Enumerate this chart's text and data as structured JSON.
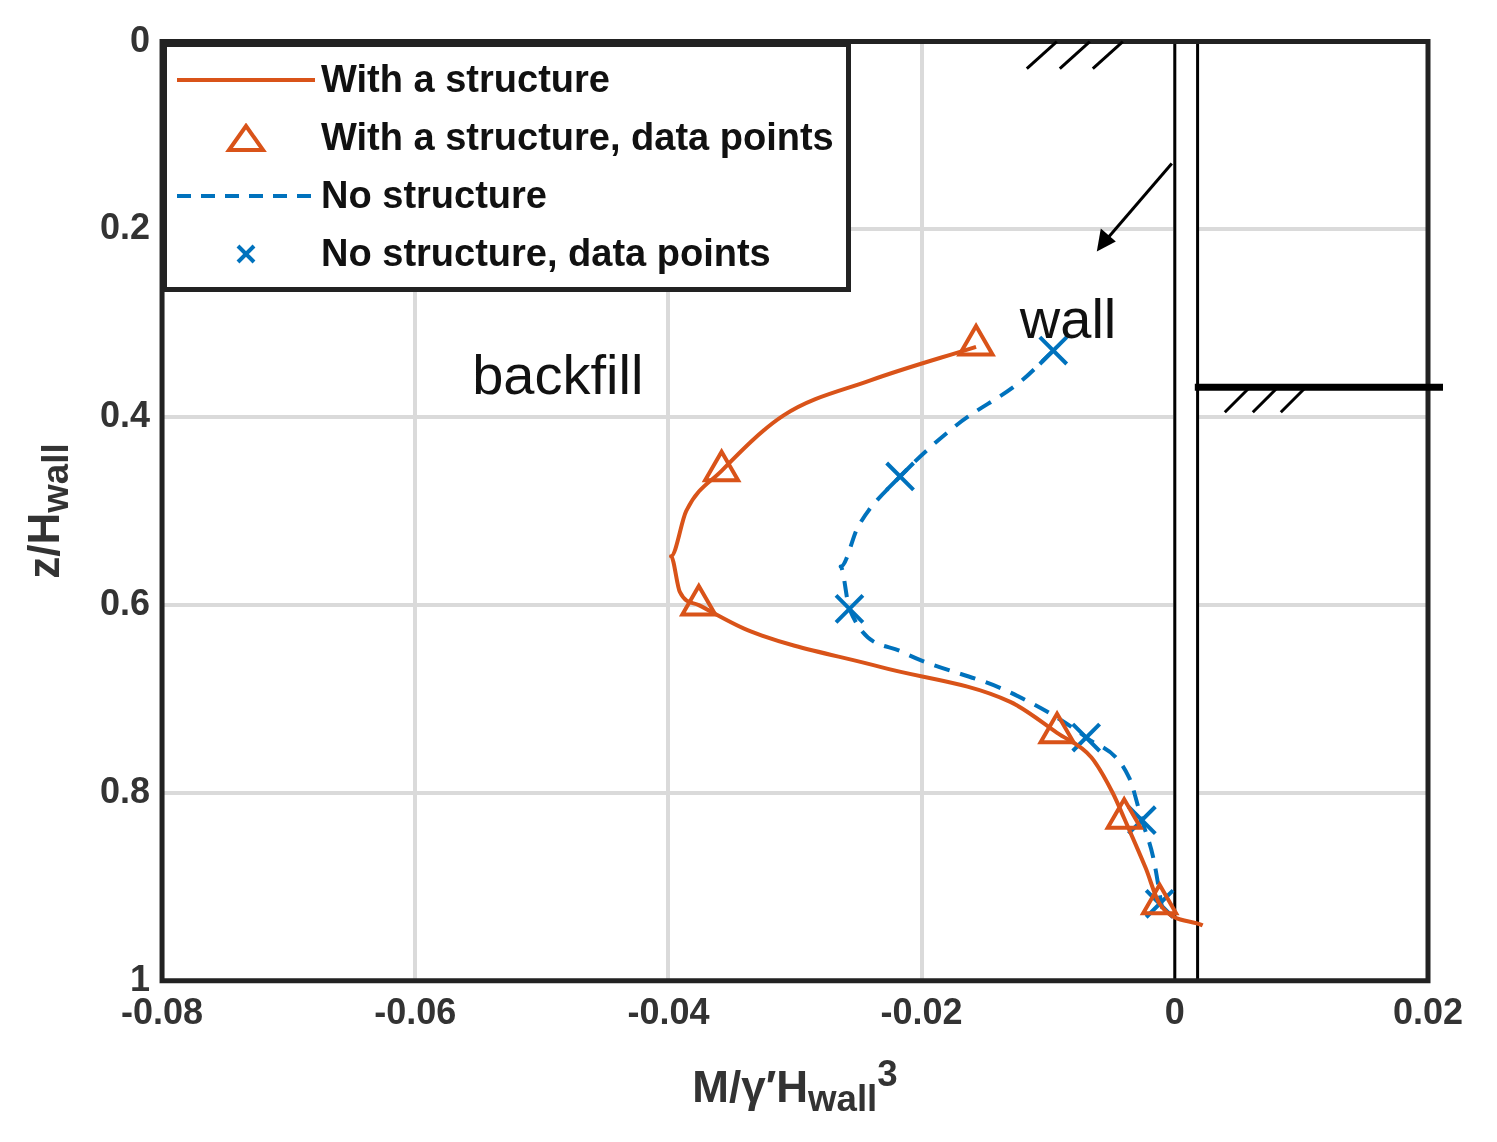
{
  "chart_data": {
    "type": "line",
    "xlabel": "M/γ′H$_{wall}$$^{3}$",
    "ylabel": "z/H$_{wall}$",
    "xlim": [
      -0.08,
      0.02
    ],
    "xticks": [
      -0.08,
      -0.06,
      -0.04,
      -0.02,
      0,
      0.02
    ],
    "ylim": [
      1,
      0
    ],
    "yticks": [
      0,
      0.2,
      0.4,
      0.6,
      0.8,
      1
    ],
    "grid": true,
    "legend": "top left",
    "annotations": [
      "backfill"
    ],
    "bands": [
      {
        "axis": "x",
        "from": 0,
        "to": 0.0018,
        "label": "wall",
        "color": "#ffffff"
      }
    ],
    "series": [
      {
        "name": "With a structure",
        "color": "#d95319",
        "line_style": "solid",
        "marker": "none",
        "x": [
          -0.0157,
          -0.0241,
          -0.0309,
          -0.0358,
          -0.0386,
          -0.0398,
          -0.0391,
          -0.0376,
          -0.0335,
          -0.0232,
          -0.013,
          -0.0093,
          -0.0066,
          -0.0049,
          -0.004,
          -0.0023,
          -0.0012,
          0.0022
        ],
        "values": [
          0.325,
          0.361,
          0.398,
          0.457,
          0.5,
          0.548,
          0.586,
          0.6,
          0.628,
          0.666,
          0.703,
          0.736,
          0.762,
          0.8,
          0.827,
          0.88,
          0.918,
          0.941
        ]
      },
      {
        "name": "With a structure, data points",
        "type": "scatter",
        "color": "#d95319",
        "marker": "triangle",
        "x": [
          -0.0157,
          -0.0358,
          -0.0376,
          -0.0093,
          -0.004,
          -0.0012
        ],
        "values": [
          0.323,
          0.457,
          0.6,
          0.736,
          0.827,
          0.918
        ]
      },
      {
        "name": "No structure",
        "color": "#0072bd",
        "line_style": "dashed",
        "marker": "none",
        "x": [
          -0.0096,
          -0.0121,
          -0.0173,
          -0.0217,
          -0.025,
          -0.0264,
          -0.0257,
          -0.0215,
          -0.013,
          -0.007,
          -0.0036,
          -0.0026,
          -0.0017,
          -0.001
        ],
        "values": [
          0.329,
          0.361,
          0.409,
          0.463,
          0.516,
          0.559,
          0.604,
          0.65,
          0.693,
          0.741,
          0.784,
          0.829,
          0.869,
          0.923
        ]
      },
      {
        "name": "No structure, data points",
        "type": "scatter",
        "color": "#0072bd",
        "marker": "cross",
        "x": [
          -0.0096,
          -0.0217,
          -0.0257,
          -0.007,
          -0.0026,
          -0.0012
        ],
        "values": [
          0.329,
          0.463,
          0.604,
          0.741,
          0.829,
          0.918
        ]
      }
    ]
  }
}
